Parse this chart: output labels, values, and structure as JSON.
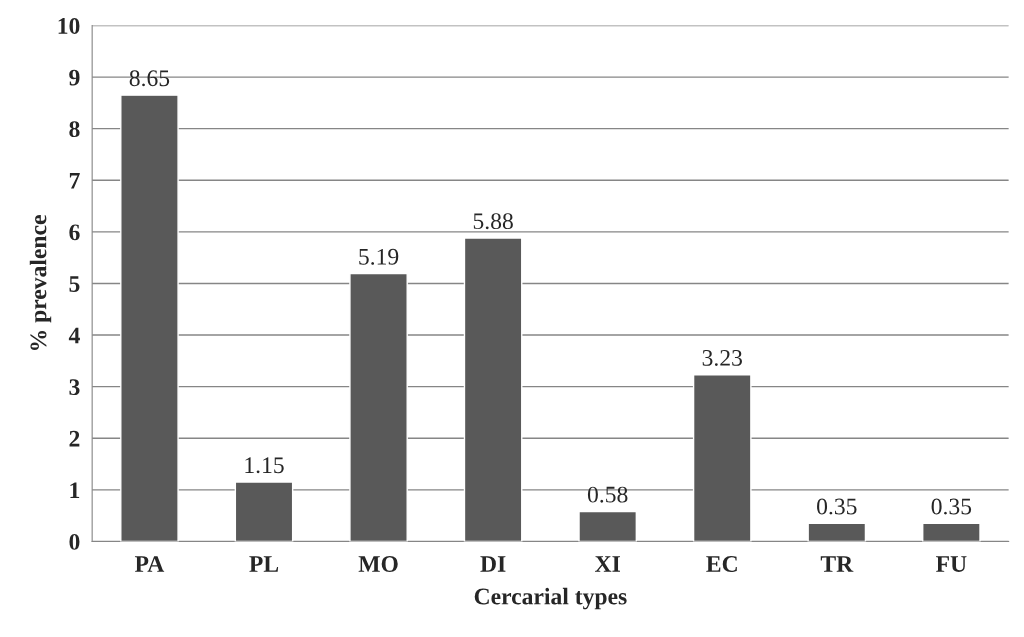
{
  "chart_data": {
    "type": "bar",
    "xlabel": "Cercarial types",
    "ylabel": "% prevalence",
    "categories": [
      "PA",
      "PL",
      "MO",
      "DI",
      "XI",
      "EC",
      "TR",
      "FU"
    ],
    "values": [
      8.65,
      1.15,
      5.19,
      5.88,
      0.58,
      3.23,
      0.35,
      0.35
    ],
    "color": "#595959",
    "ylim": [
      0,
      10
    ],
    "yticks": [
      0,
      1,
      2,
      3,
      4,
      5,
      6,
      7,
      8,
      9,
      10
    ],
    "grid": "y",
    "data_labels": true
  }
}
